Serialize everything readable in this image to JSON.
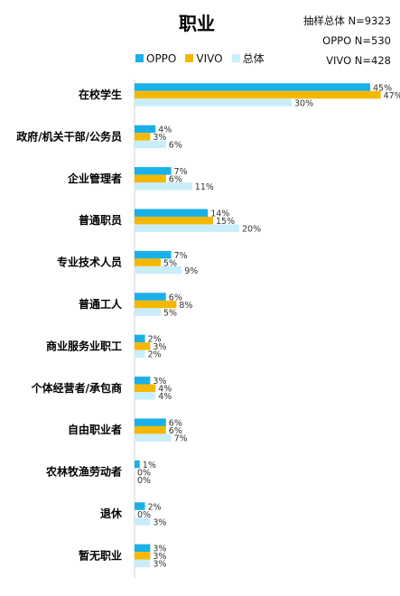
{
  "chart_data": {
    "type": "bar",
    "orientation": "horizontal",
    "title": "职业",
    "sample_sizes": [
      "抽样总体 N=9323",
      "OPPO N=530",
      "VIVO N=428"
    ],
    "categories": [
      "在校学生",
      "政府/机关干部/公务员",
      "企业管理者",
      "普通职员",
      "专业技术人员",
      "普通工人",
      "商业服务业职工",
      "个体经营者/承包商",
      "自由职业者",
      "农林牧渔劳动者",
      "退休",
      "暂无职业"
    ],
    "series": [
      {
        "name": "OPPO",
        "color": "#1ab0e8",
        "values": [
          45,
          4,
          7,
          14,
          7,
          6,
          2,
          3,
          6,
          1,
          2,
          3
        ]
      },
      {
        "name": "VIVO",
        "color": "#f5b800",
        "values": [
          47,
          3,
          6,
          15,
          5,
          8,
          3,
          4,
          6,
          0,
          0,
          3
        ]
      },
      {
        "name": "总体",
        "color": "#c9eefa",
        "values": [
          30,
          6,
          11,
          20,
          9,
          5,
          2,
          4,
          7,
          0,
          3,
          3
        ]
      }
    ],
    "value_suffix": "%",
    "xlim": [
      0,
      47
    ],
    "legend_position": "top",
    "grid": false
  }
}
